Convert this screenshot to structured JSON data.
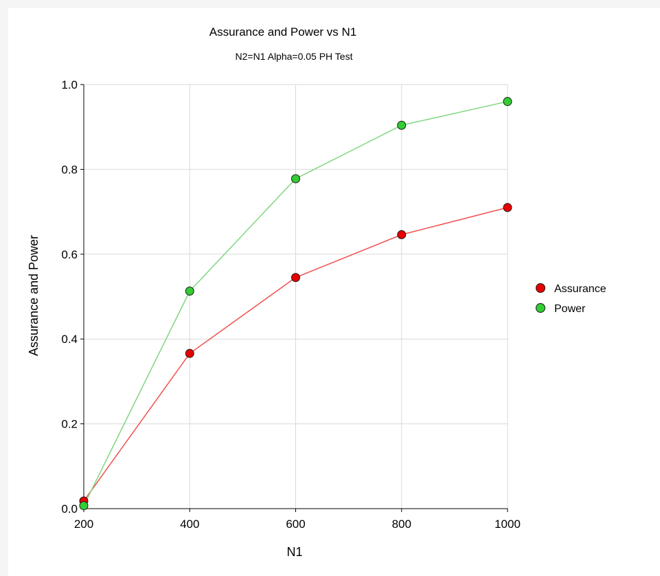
{
  "chart_data": {
    "type": "line",
    "title": "Assurance and Power vs N1",
    "subtitle": "N2=N1 Alpha=0.05 PH Test",
    "xlabel": "N1",
    "ylabel": "Assurance and Power",
    "xlim": [
      200,
      1000
    ],
    "ylim": [
      0.0,
      1.0
    ],
    "x_ticks": [
      "200",
      "400",
      "600",
      "800",
      "1000"
    ],
    "y_ticks": [
      "0.0",
      "0.2",
      "0.4",
      "0.6",
      "0.8",
      "1.0"
    ],
    "x_tick_values": [
      200,
      400,
      600,
      800,
      1000
    ],
    "y_tick_values": [
      0.0,
      0.2,
      0.4,
      0.6,
      0.8,
      1.0
    ],
    "grid": true,
    "legend_position": "right",
    "x": [
      200,
      400,
      600,
      800,
      1000
    ],
    "series": [
      {
        "name": "Assurance",
        "values": [
          0.018,
          0.366,
          0.545,
          0.646,
          0.71
        ],
        "marker_color": "#e60000",
        "line_color": "#f05050"
      },
      {
        "name": "Power",
        "values": [
          0.007,
          0.513,
          0.778,
          0.904,
          0.96
        ],
        "marker_color": "#33cc33",
        "line_color": "#7ed67e"
      }
    ]
  }
}
